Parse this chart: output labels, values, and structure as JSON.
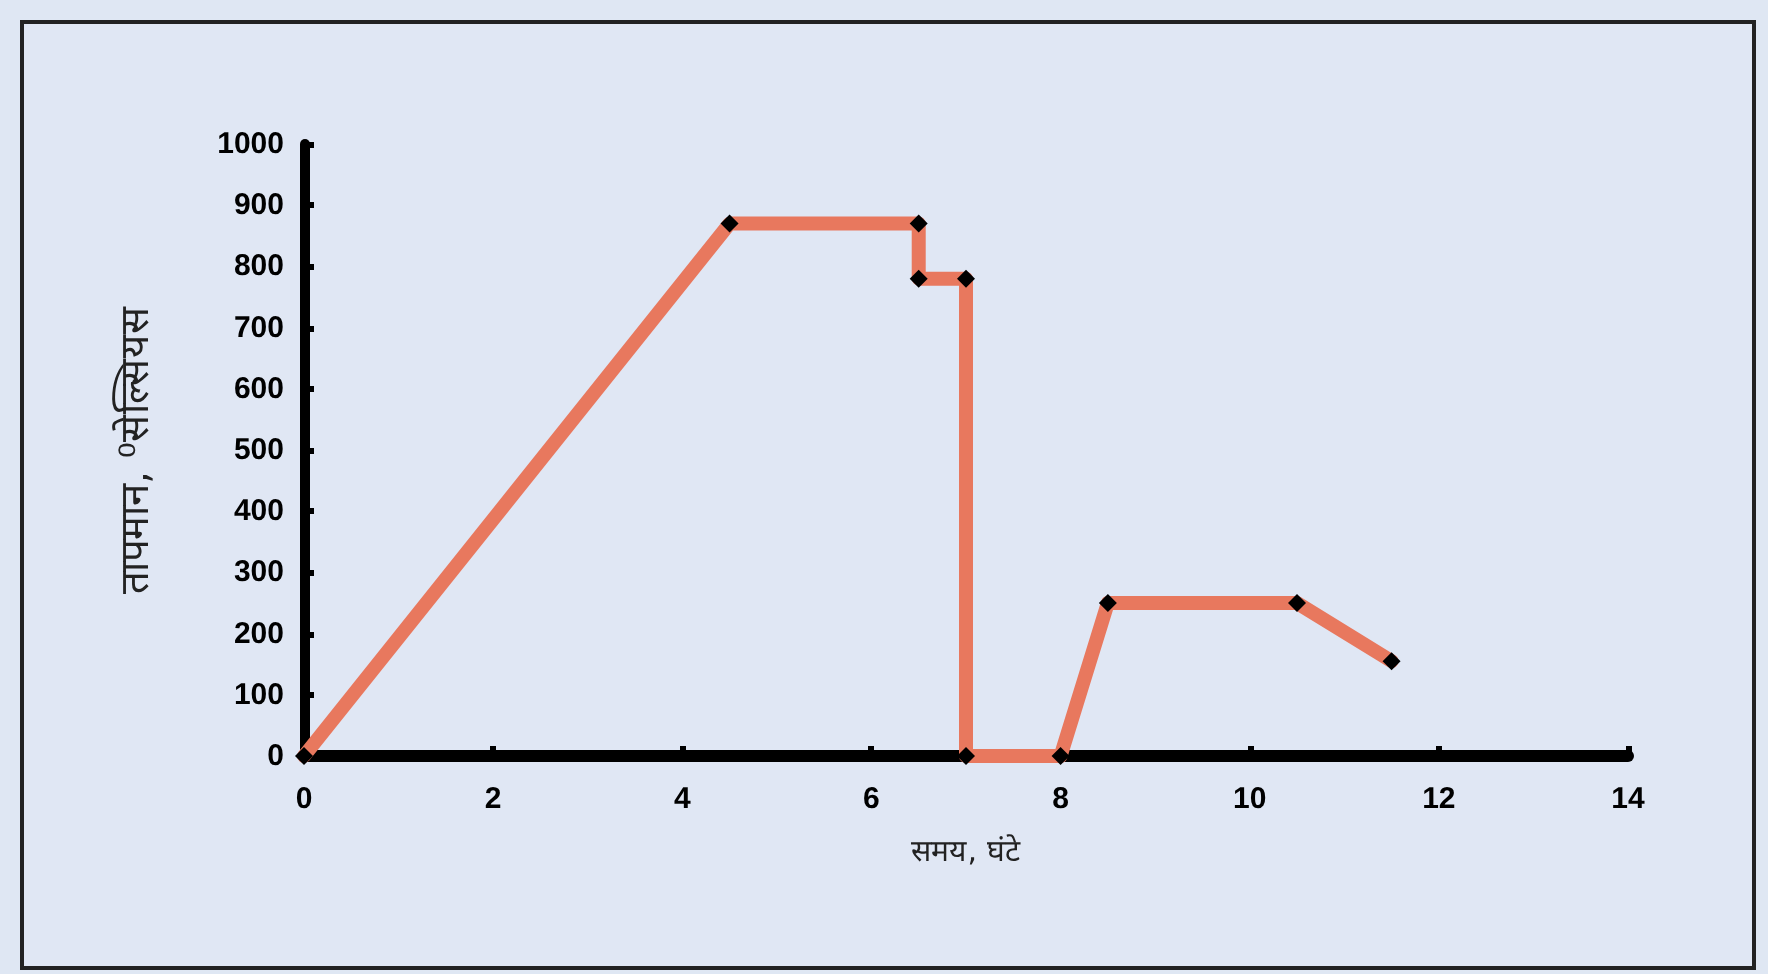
{
  "chart_data": {
    "type": "line",
    "xlabel": "समय, घंटे",
    "ylabel": "तापमान, ⁰सेल्सियस",
    "series": [
      {
        "color": "#e8785e",
        "x": [
          0,
          4.5,
          6.5,
          6.5,
          7,
          7,
          8,
          8.5,
          10.5,
          11.5
        ],
        "values": [
          0,
          870,
          870,
          780,
          780,
          0,
          0,
          250,
          250,
          155
        ]
      }
    ],
    "xlim": [
      0,
      14
    ],
    "xticks": [
      0,
      2,
      4,
      6,
      8,
      10,
      12,
      14
    ],
    "ylim": [
      0,
      1000
    ],
    "yticks": [
      0,
      100,
      200,
      300,
      400,
      500,
      600,
      700,
      800,
      900,
      1000
    ],
    "grid": false,
    "marker": "diamond",
    "line_style": "solid"
  }
}
